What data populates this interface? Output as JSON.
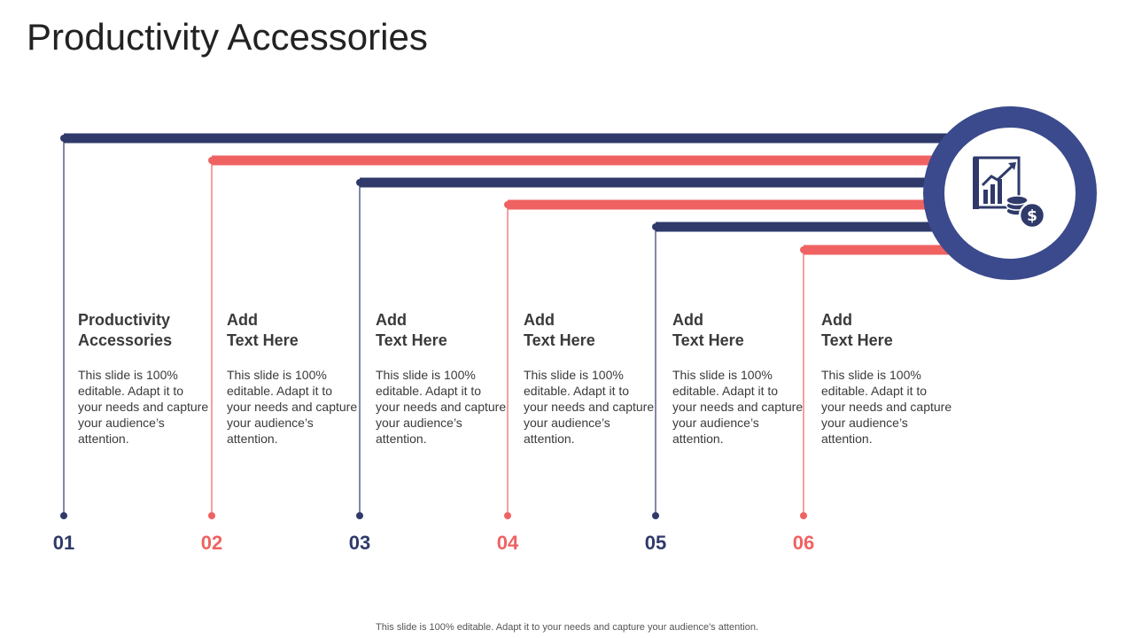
{
  "title": "Productivity Accessories",
  "colors": {
    "navy": "#2f3a6b",
    "coral": "#f06262",
    "circle": "#3b4a8c",
    "text": "#3a3a3a"
  },
  "icon": "chart-with-coins-icon",
  "items": [
    {
      "number": "01",
      "heading1": "Productivity",
      "heading2": "Accessories",
      "text": "This slide is 100% editable. Adapt it to your needs and capture your audience’s attention.",
      "color": "navy"
    },
    {
      "number": "02",
      "heading1": "Add",
      "heading2": "Text Here",
      "text": "This slide is 100% editable. Adapt it to your needs and capture your audience’s attention.",
      "color": "coral"
    },
    {
      "number": "03",
      "heading1": "Add",
      "heading2": "Text Here",
      "text": "This slide is 100% editable. Adapt it to your needs and capture your audience’s attention.",
      "color": "navy"
    },
    {
      "number": "04",
      "heading1": "Add",
      "heading2": "Text Here",
      "text": "This slide is 100% editable. Adapt it to your needs and capture your audience’s attention.",
      "color": "coral"
    },
    {
      "number": "05",
      "heading1": "Add",
      "heading2": "Text Here",
      "text": "This slide is 100% editable. Adapt it to your needs and capture your audience’s attention.",
      "color": "navy"
    },
    {
      "number": "06",
      "heading1": "Add",
      "heading2": "Text Here",
      "text": "This slide is 100% editable. Adapt it to your needs and capture your audience’s attention.",
      "color": "coral"
    }
  ],
  "footer": "This slide is 100% editable. Adapt it to your needs and capture your audience's attention."
}
